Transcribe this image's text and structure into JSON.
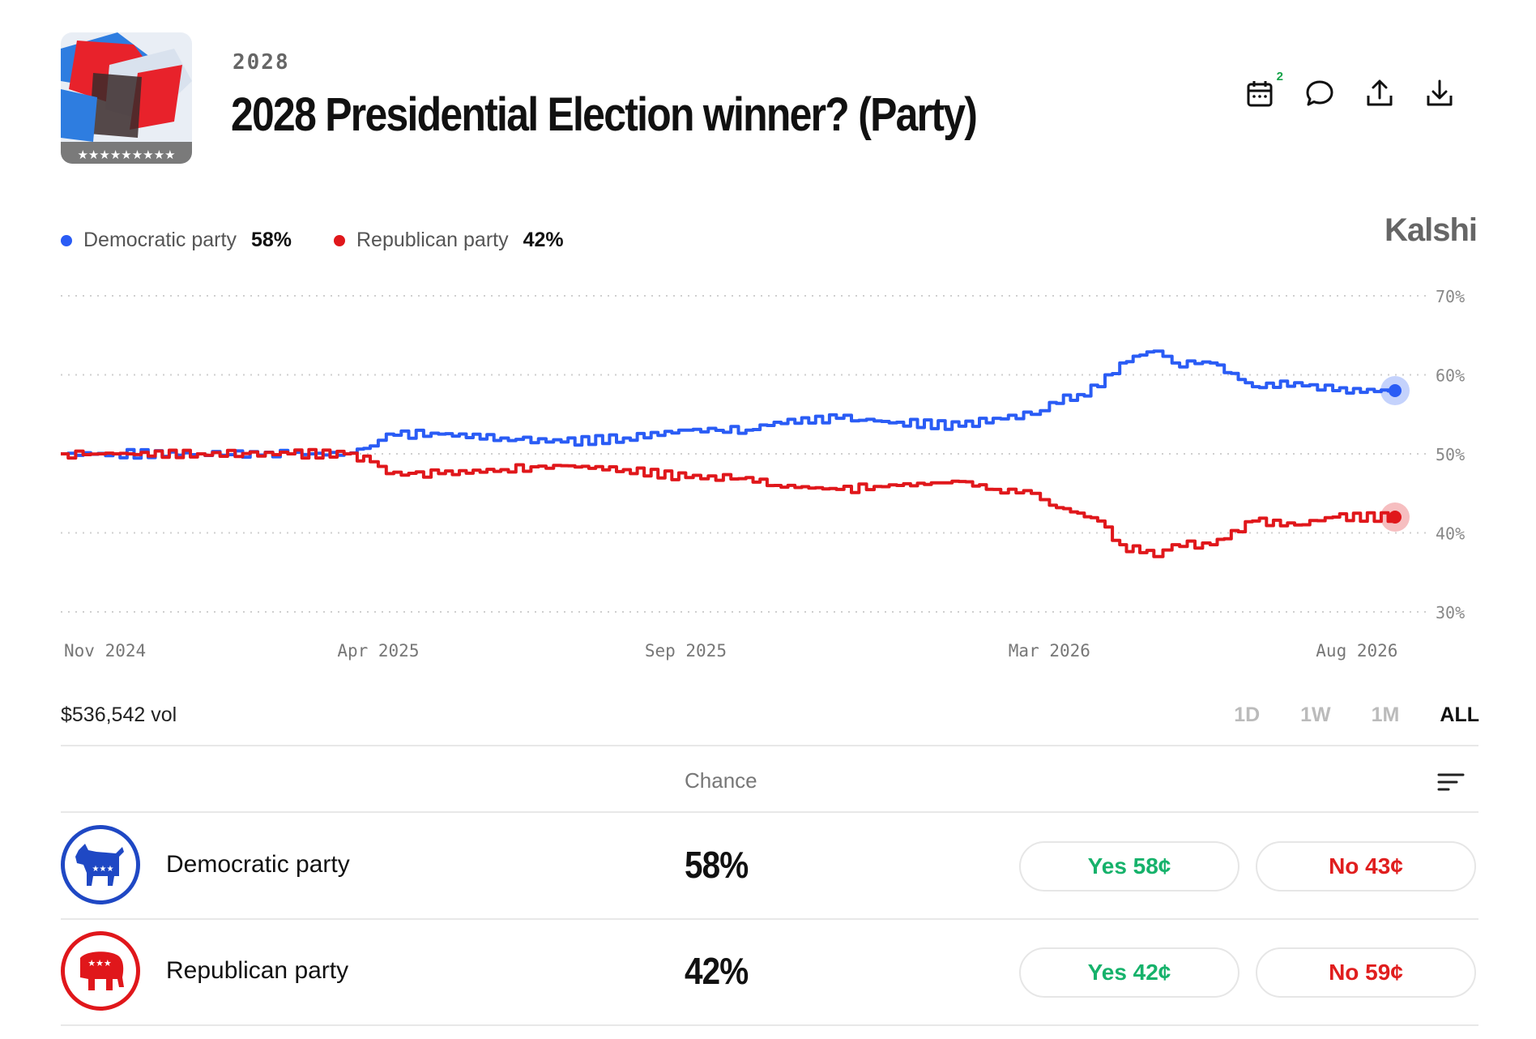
{
  "header": {
    "category": "2028",
    "title": "2028 Presidential Election winner? (Party)",
    "calendar_badge": "2",
    "icons": [
      "calendar-icon",
      "comment-icon",
      "share-icon",
      "download-icon"
    ]
  },
  "legend": [
    {
      "label": "Democratic party",
      "value": "58%",
      "color": "#2a5cf5"
    },
    {
      "label": "Republican party",
      "value": "42%",
      "color": "#e0171b"
    }
  ],
  "brand": "Kalshi",
  "chart_data": {
    "type": "line",
    "x_ticks": [
      "Nov 2024",
      "Apr 2025",
      "Sep 2025",
      "Mar 2026",
      "Aug 2026"
    ],
    "y_ticks": [
      "70%",
      "60%",
      "50%",
      "40%",
      "30%"
    ],
    "ylim": [
      30,
      70
    ],
    "grid": true,
    "legend_position": "top-left",
    "series": [
      {
        "name": "Democratic party",
        "color": "#2a5cf5",
        "points": [
          [
            "2024-10-25",
            50
          ],
          [
            "2024-11-20",
            50
          ],
          [
            "2025-01-01",
            50
          ],
          [
            "2025-02-15",
            50
          ],
          [
            "2025-03-15",
            50
          ],
          [
            "2025-03-28",
            51
          ],
          [
            "2025-04-05",
            52.5
          ],
          [
            "2025-05-01",
            52.5
          ],
          [
            "2025-06-01",
            52
          ],
          [
            "2025-07-01",
            51.5
          ],
          [
            "2025-08-01",
            52
          ],
          [
            "2025-09-01",
            53
          ],
          [
            "2025-10-01",
            53
          ],
          [
            "2025-10-15",
            54
          ],
          [
            "2025-11-15",
            54.5
          ],
          [
            "2025-12-15",
            54
          ],
          [
            "2026-01-15",
            53.5
          ],
          [
            "2026-02-01",
            54.5
          ],
          [
            "2026-02-20",
            55
          ],
          [
            "2026-03-01",
            56.5
          ],
          [
            "2026-03-15",
            57.5
          ],
          [
            "2026-03-25",
            58.5
          ],
          [
            "2026-04-05",
            61.5
          ],
          [
            "2026-04-15",
            62.5
          ],
          [
            "2026-04-22",
            63
          ],
          [
            "2026-05-01",
            61.5
          ],
          [
            "2026-05-20",
            61.5
          ],
          [
            "2026-06-10",
            58.5
          ],
          [
            "2026-07-01",
            59
          ],
          [
            "2026-07-20",
            58
          ],
          [
            "2026-08-20",
            58
          ]
        ]
      },
      {
        "name": "Republican party",
        "color": "#e0171b",
        "points": [
          [
            "2024-10-25",
            50
          ],
          [
            "2024-11-20",
            50
          ],
          [
            "2025-01-01",
            50
          ],
          [
            "2025-02-15",
            50
          ],
          [
            "2025-03-15",
            50
          ],
          [
            "2025-03-28",
            49
          ],
          [
            "2025-04-05",
            47.5
          ],
          [
            "2025-05-01",
            47.5
          ],
          [
            "2025-06-01",
            48
          ],
          [
            "2025-07-01",
            48.5
          ],
          [
            "2025-08-01",
            48
          ],
          [
            "2025-09-01",
            47
          ],
          [
            "2025-10-01",
            47
          ],
          [
            "2025-10-15",
            46
          ],
          [
            "2025-11-15",
            45.5
          ],
          [
            "2025-12-15",
            46
          ],
          [
            "2026-01-15",
            46.5
          ],
          [
            "2026-02-01",
            45.5
          ],
          [
            "2026-02-20",
            45
          ],
          [
            "2026-03-01",
            43.5
          ],
          [
            "2026-03-15",
            42.5
          ],
          [
            "2026-03-25",
            41.5
          ],
          [
            "2026-04-05",
            38.5
          ],
          [
            "2026-04-15",
            37.5
          ],
          [
            "2026-04-22",
            37
          ],
          [
            "2026-05-01",
            38.5
          ],
          [
            "2026-05-20",
            38.5
          ],
          [
            "2026-06-10",
            41.5
          ],
          [
            "2026-07-01",
            41
          ],
          [
            "2026-07-20",
            42
          ],
          [
            "2026-08-20",
            42
          ]
        ]
      }
    ]
  },
  "volume": "$536,542 vol",
  "ranges": [
    {
      "label": "1D",
      "active": false
    },
    {
      "label": "1W",
      "active": false
    },
    {
      "label": "1M",
      "active": false
    },
    {
      "label": "ALL",
      "active": true
    }
  ],
  "table": {
    "header": "Chance",
    "rows": [
      {
        "name": "Democratic party",
        "chance": "58%",
        "yes": "Yes 58¢",
        "no": "No 43¢",
        "color": "#1f48c4",
        "logo": "donkey-logo"
      },
      {
        "name": "Republican party",
        "chance": "42%",
        "yes": "Yes 42¢",
        "no": "No 59¢",
        "color": "#e0171b",
        "logo": "elephant-logo"
      }
    ]
  }
}
